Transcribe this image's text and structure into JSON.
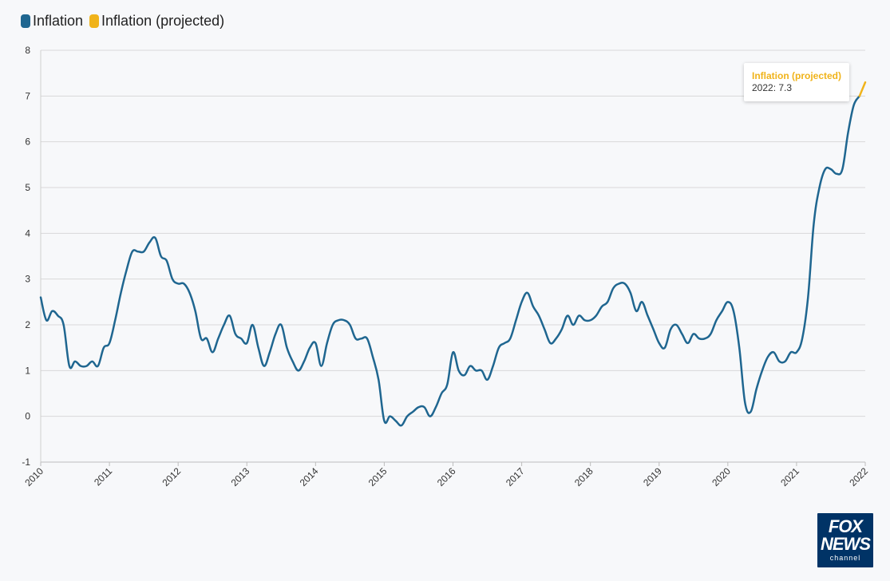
{
  "legend": {
    "items": [
      {
        "label": "Inflation",
        "color": "#1f6690"
      },
      {
        "label": "Inflation (projected)",
        "color": "#f0b31a"
      }
    ]
  },
  "tooltip": {
    "title": "Inflation (projected)",
    "value_text": "2022: 7.3",
    "title_color": "#f0b31a"
  },
  "logo": {
    "line1": "FOX",
    "line2": "NEWS",
    "line3": "channel"
  },
  "chart_data": {
    "type": "line",
    "title": "",
    "xlabel": "",
    "ylabel": "",
    "xlim": [
      2010,
      2022
    ],
    "ylim": [
      -1,
      8
    ],
    "yticks": [
      -1,
      0,
      1,
      2,
      3,
      4,
      5,
      6,
      7,
      8
    ],
    "xticks": [
      2010,
      2011,
      2012,
      2013,
      2014,
      2015,
      2016,
      2017,
      2018,
      2019,
      2020,
      2021,
      2022
    ],
    "grid": true,
    "legend_position": "top-left",
    "series": [
      {
        "name": "Inflation",
        "color": "#1f6690",
        "x": [
          2010,
          2010.083,
          2010.167,
          2010.25,
          2010.333,
          2010.417,
          2010.5,
          2010.583,
          2010.667,
          2010.75,
          2010.833,
          2010.917,
          2011,
          2011.083,
          2011.167,
          2011.25,
          2011.333,
          2011.417,
          2011.5,
          2011.583,
          2011.667,
          2011.75,
          2011.833,
          2011.917,
          2012,
          2012.083,
          2012.167,
          2012.25,
          2012.333,
          2012.417,
          2012.5,
          2012.583,
          2012.667,
          2012.75,
          2012.833,
          2012.917,
          2013,
          2013.083,
          2013.167,
          2013.25,
          2013.333,
          2013.417,
          2013.5,
          2013.583,
          2013.667,
          2013.75,
          2013.833,
          2013.917,
          2014,
          2014.083,
          2014.167,
          2014.25,
          2014.333,
          2014.417,
          2014.5,
          2014.583,
          2014.667,
          2014.75,
          2014.833,
          2014.917,
          2015,
          2015.083,
          2015.167,
          2015.25,
          2015.333,
          2015.417,
          2015.5,
          2015.583,
          2015.667,
          2015.75,
          2015.833,
          2015.917,
          2016,
          2016.083,
          2016.167,
          2016.25,
          2016.333,
          2016.417,
          2016.5,
          2016.583,
          2016.667,
          2016.75,
          2016.833,
          2016.917,
          2017,
          2017.083,
          2017.167,
          2017.25,
          2017.333,
          2017.417,
          2017.5,
          2017.583,
          2017.667,
          2017.75,
          2017.833,
          2017.917,
          2018,
          2018.083,
          2018.167,
          2018.25,
          2018.333,
          2018.417,
          2018.5,
          2018.583,
          2018.667,
          2018.75,
          2018.833,
          2018.917,
          2019,
          2019.083,
          2019.167,
          2019.25,
          2019.333,
          2019.417,
          2019.5,
          2019.583,
          2019.667,
          2019.75,
          2019.833,
          2019.917,
          2020,
          2020.083,
          2020.167,
          2020.25,
          2020.333,
          2020.417,
          2020.5,
          2020.583,
          2020.667,
          2020.75,
          2020.833,
          2020.917,
          2021,
          2021.083,
          2021.167,
          2021.25,
          2021.333,
          2021.417,
          2021.5,
          2021.583,
          2021.667,
          2021.75,
          2021.833,
          2021.917
        ],
        "values": [
          2.6,
          2.1,
          2.3,
          2.2,
          2.0,
          1.1,
          1.2,
          1.1,
          1.1,
          1.2,
          1.1,
          1.5,
          1.6,
          2.1,
          2.7,
          3.2,
          3.6,
          3.6,
          3.6,
          3.8,
          3.9,
          3.5,
          3.4,
          3.0,
          2.9,
          2.9,
          2.7,
          2.3,
          1.7,
          1.7,
          1.4,
          1.7,
          2.0,
          2.2,
          1.8,
          1.7,
          1.6,
          2.0,
          1.5,
          1.1,
          1.4,
          1.8,
          2.0,
          1.5,
          1.2,
          1.0,
          1.2,
          1.5,
          1.6,
          1.1,
          1.6,
          2.0,
          2.1,
          2.1,
          2.0,
          1.7,
          1.7,
          1.7,
          1.3,
          0.8,
          -0.1,
          0.0,
          -0.1,
          -0.2,
          0.0,
          0.1,
          0.2,
          0.2,
          0.0,
          0.2,
          0.5,
          0.7,
          1.4,
          1.0,
          0.9,
          1.1,
          1.0,
          1.0,
          0.8,
          1.1,
          1.5,
          1.6,
          1.7,
          2.1,
          2.5,
          2.7,
          2.4,
          2.2,
          1.9,
          1.6,
          1.7,
          1.9,
          2.2,
          2.0,
          2.2,
          2.1,
          2.1,
          2.2,
          2.4,
          2.5,
          2.8,
          2.9,
          2.9,
          2.7,
          2.3,
          2.5,
          2.2,
          1.9,
          1.6,
          1.5,
          1.9,
          2.0,
          1.8,
          1.6,
          1.8,
          1.7,
          1.7,
          1.8,
          2.1,
          2.3,
          2.5,
          2.3,
          1.5,
          0.3,
          0.1,
          0.6,
          1.0,
          1.3,
          1.4,
          1.2,
          1.2,
          1.4,
          1.4,
          1.7,
          2.6,
          4.2,
          5.0,
          5.4,
          5.4,
          5.3,
          5.4,
          6.2,
          6.8,
          7.0
        ]
      },
      {
        "name": "Inflation (projected)",
        "color": "#f0b31a",
        "x": [
          2021.917,
          2022
        ],
        "values": [
          7.0,
          7.3
        ]
      }
    ]
  }
}
